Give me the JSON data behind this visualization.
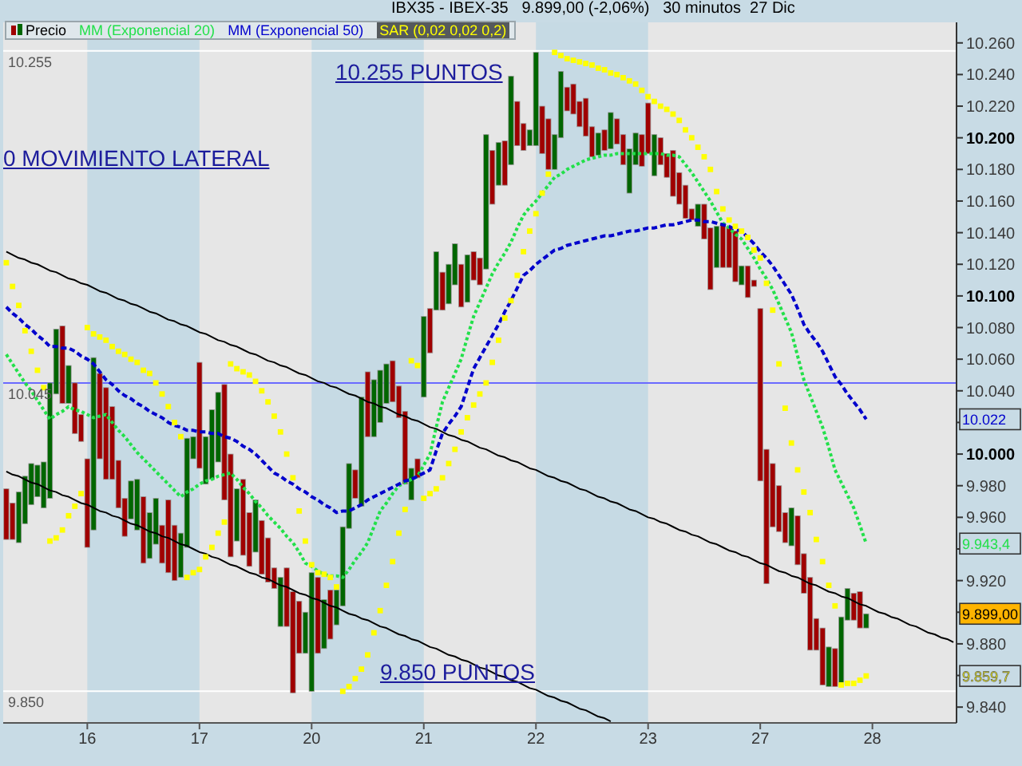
{
  "chart_data": {
    "type": "candlestick",
    "title": "IBX35 - IBEX-35   9.899,00 (-2,06%)   30 minutos  27 Dic",
    "categories": [
      null,
      null,
      null,
      null,
      null,
      null,
      null,
      null,
      null,
      null,
      null,
      null,
      null,
      "16",
      null,
      null,
      null,
      null,
      null,
      null,
      null,
      null,
      null,
      null,
      null,
      null,
      null,
      null,
      null,
      null,
      null,
      "17",
      null,
      null,
      null,
      null,
      null,
      null,
      null,
      null,
      null,
      null,
      null,
      null,
      null,
      null,
      null,
      null,
      null,
      "20",
      null,
      null,
      null,
      null,
      null,
      null,
      null,
      null,
      null,
      null,
      null,
      null,
      null,
      null,
      null,
      null,
      null,
      "21",
      null,
      null,
      null,
      null,
      null,
      null,
      null,
      null,
      null,
      null,
      null,
      null,
      null,
      null,
      null,
      null,
      null,
      "22",
      null,
      null,
      null,
      null,
      null,
      null,
      null,
      null,
      null,
      null,
      null,
      null,
      null,
      null,
      null,
      null,
      null,
      "23",
      null,
      null,
      null,
      null,
      null,
      null,
      null,
      null,
      null,
      null,
      null,
      null,
      null,
      null,
      null,
      null,
      null,
      "27",
      null,
      null,
      null,
      null,
      null,
      null,
      null,
      null,
      null,
      null,
      null,
      null,
      null,
      null,
      null,
      null,
      null,
      "28",
      null,
      null,
      null,
      null,
      null,
      null,
      null,
      null,
      null,
      null,
      null,
      null,
      null
    ],
    "ylim": [
      9830,
      10273
    ],
    "yticks": [
      {
        "value": 9840,
        "label": "9.840"
      },
      {
        "value": 9860,
        "label": null
      },
      {
        "value": 9880,
        "label": "9.880"
      },
      {
        "value": 9900,
        "label": null
      },
      {
        "value": 9920,
        "label": "9.920"
      },
      {
        "value": 9940,
        "label": null
      },
      {
        "value": 9960,
        "label": "9.960"
      },
      {
        "value": 9980,
        "label": "9.980"
      },
      {
        "value": 10000,
        "label": "10.000"
      },
      {
        "value": 10020,
        "label": null
      },
      {
        "value": 10040,
        "label": "10.040"
      },
      {
        "value": 10060,
        "label": "10.060"
      },
      {
        "value": 10080,
        "label": "10.080"
      },
      {
        "value": 10100,
        "label": "10.100"
      },
      {
        "value": 10120,
        "label": "10.120"
      },
      {
        "value": 10140,
        "label": "10.140"
      },
      {
        "value": 10160,
        "label": "10.160"
      },
      {
        "value": 10180,
        "label": "10.180"
      },
      {
        "value": 10200,
        "label": "10.200"
      },
      {
        "value": 10220,
        "label": "10.220"
      },
      {
        "value": 10240,
        "label": "10.240"
      },
      {
        "value": 10260,
        "label": "10.260"
      }
    ],
    "legend": "top left",
    "series": [
      {
        "name": "Precio",
        "ohlc": [
          [
            9978,
            9978,
            9946,
            9946
          ],
          [
            9969,
            9969,
            9946,
            9946
          ],
          [
            9944,
            9976,
            9944,
            9976
          ],
          [
            9956,
            9986,
            9956,
            9986
          ],
          [
            9968,
            9994,
            9968,
            9994
          ],
          [
            9973,
            9993,
            9973,
            9993
          ],
          [
            9966,
            9995,
            9966,
            9995
          ],
          [
            9972,
            10045,
            9972,
            10045
          ],
          [
            10038,
            10079,
            10038,
            10079
          ],
          [
            10081,
            10081,
            10032,
            10032
          ],
          [
            10032,
            10056,
            10032,
            10056
          ],
          [
            10045,
            10045,
            10013,
            10013
          ],
          [
            10025,
            10025,
            10008,
            10008
          ],
          [
            9997,
            9997,
            9941,
            9941
          ],
          [
            9952,
            10061,
            9952,
            10061
          ],
          [
            10051,
            10051,
            9997,
            9997
          ],
          [
            10042,
            10042,
            9984,
            9984
          ],
          [
            10030,
            10030,
            9984,
            9984
          ],
          [
            9996,
            9996,
            9966,
            9966
          ],
          [
            9972,
            9972,
            9948,
            9948
          ],
          [
            9959,
            9983,
            9959,
            9983
          ],
          [
            9952,
            9984,
            9952,
            9984
          ],
          [
            9973,
            9973,
            9931,
            9931
          ],
          [
            9934,
            9963,
            9934,
            9963
          ],
          [
            9943,
            9972,
            9943,
            9972
          ],
          [
            9955,
            9955,
            9931,
            9931
          ],
          [
            9971,
            9971,
            9925,
            9925
          ],
          [
            9955,
            9955,
            9920,
            9920
          ],
          [
            9922,
            9950,
            9922,
            9950
          ],
          [
            9941,
            10010,
            9941,
            10010
          ],
          [
            9997,
            10011,
            9997,
            10011
          ],
          [
            10058,
            10058,
            9991,
            9991
          ],
          [
            9981,
            10011,
            9981,
            10011
          ],
          [
            9984,
            10028,
            9984,
            10028
          ],
          [
            9995,
            10039,
            9995,
            10039
          ],
          [
            10044,
            10044,
            9971,
            9971
          ],
          [
            10000,
            10000,
            9935,
            9935
          ],
          [
            9945,
            9978,
            9945,
            9978
          ],
          [
            9984,
            9984,
            9936,
            9936
          ],
          [
            9963,
            9963,
            9929,
            9929
          ],
          [
            9938,
            9971,
            9938,
            9971
          ],
          [
            9958,
            9958,
            9924,
            9924
          ],
          [
            9947,
            9947,
            9919,
            9919
          ],
          [
            9928,
            9928,
            9915,
            9915
          ],
          [
            9891,
            9922,
            9891,
            9922
          ],
          [
            9928,
            9928,
            9891,
            9891
          ],
          [
            9913,
            9913,
            9849,
            9849
          ],
          [
            9907,
            9907,
            9874,
            9874
          ],
          [
            9874,
            9900,
            9874,
            9900
          ],
          [
            9850,
            9925,
            9850,
            9925
          ],
          [
            9922,
            9922,
            9874,
            9874
          ],
          [
            9877,
            9908,
            9877,
            9908
          ],
          [
            9914,
            9914,
            9883,
            9883
          ],
          [
            9892,
            9914,
            9892,
            9914
          ],
          [
            9904,
            9954,
            9904,
            9954
          ],
          [
            9953,
            9994,
            9953,
            9994
          ],
          [
            9990,
            9990,
            9972,
            9972
          ],
          [
            9967,
            10036,
            9967,
            10036
          ],
          [
            10052,
            10052,
            10011,
            10011
          ],
          [
            10011,
            10047,
            10011,
            10047
          ],
          [
            10020,
            10053,
            10020,
            10053
          ],
          [
            10032,
            10057,
            10032,
            10057
          ],
          [
            10059,
            10059,
            10033,
            10033
          ],
          [
            10043,
            10043,
            10023,
            10023
          ],
          [
            10027,
            10027,
            9981,
            9981
          ],
          [
            9971,
            9991,
            9971,
            9991
          ],
          [
            9997,
            9997,
            9985,
            9985
          ],
          [
            10036,
            10087,
            10036,
            10087
          ],
          [
            10092,
            10092,
            10064,
            10064
          ],
          [
            10091,
            10128,
            10091,
            10128
          ],
          [
            10115,
            10115,
            10091,
            10091
          ],
          [
            10095,
            10120,
            10095,
            10120
          ],
          [
            10107,
            10133,
            10107,
            10133
          ],
          [
            10120,
            10120,
            10093,
            10093
          ],
          [
            10096,
            10126,
            10096,
            10126
          ],
          [
            10128,
            10128,
            10110,
            10110
          ],
          [
            10124,
            10124,
            10107,
            10107
          ],
          [
            10117,
            10202,
            10117,
            10202
          ],
          [
            10192,
            10192,
            10158,
            10158
          ],
          [
            10170,
            10197,
            10170,
            10197
          ],
          [
            10198,
            10198,
            10170,
            10170
          ],
          [
            10183,
            10239,
            10183,
            10239
          ],
          [
            10223,
            10223,
            10195,
            10195
          ],
          [
            10209,
            10209,
            10192,
            10192
          ],
          [
            10195,
            10205,
            10195,
            10205
          ],
          [
            10195,
            10254,
            10195,
            10254
          ],
          [
            10220,
            10220,
            10190,
            10190
          ],
          [
            10212,
            10212,
            10180,
            10180
          ],
          [
            10180,
            10202,
            10180,
            10202
          ],
          [
            10200,
            10242,
            10200,
            10242
          ],
          [
            10232,
            10232,
            10217,
            10217
          ],
          [
            10234,
            10234,
            10215,
            10215
          ],
          [
            10223,
            10223,
            10207,
            10207
          ],
          [
            10225,
            10225,
            10201,
            10201
          ],
          [
            10207,
            10207,
            10188,
            10188
          ],
          [
            10189,
            10203,
            10189,
            10203
          ],
          [
            10205,
            10205,
            10192,
            10192
          ],
          [
            10193,
            10216,
            10193,
            10216
          ],
          [
            10212,
            10212,
            10196,
            10196
          ],
          [
            10202,
            10202,
            10183,
            10183
          ],
          [
            10165,
            10193,
            10165,
            10193
          ],
          [
            10183,
            10203,
            10183,
            10203
          ],
          [
            10202,
            10202,
            10182,
            10182
          ],
          [
            10222,
            10222,
            10190,
            10190
          ],
          [
            10176,
            10202,
            10176,
            10202
          ],
          [
            10200,
            10200,
            10183,
            10183
          ],
          [
            10190,
            10190,
            10175,
            10175
          ],
          [
            10192,
            10192,
            10163,
            10163
          ],
          [
            10178,
            10178,
            10158,
            10158
          ],
          [
            10170,
            10170,
            10149,
            10149
          ],
          [
            10155,
            10155,
            10148,
            10148
          ],
          [
            10144,
            10158,
            10144,
            10158
          ],
          [
            10158,
            10158,
            10136,
            10136
          ],
          [
            10143,
            10143,
            10104,
            10104
          ],
          [
            10118,
            10144,
            10118,
            10144
          ],
          [
            10146,
            10146,
            10118,
            10118
          ],
          [
            10144,
            10144,
            10118,
            10118
          ],
          [
            10141,
            10141,
            10109,
            10109
          ],
          [
            10107,
            10119,
            10107,
            10119
          ],
          [
            10119,
            10119,
            10099,
            10099
          ],
          [
            10110,
            10110,
            10106,
            10106
          ],
          [
            10092,
            10092,
            9983,
            9983
          ],
          [
            10003,
            10003,
            9918,
            9918
          ],
          [
            9994,
            9994,
            9954,
            9954
          ],
          [
            9980,
            9980,
            9951,
            9951
          ],
          [
            9963,
            9963,
            9944,
            9944
          ],
          [
            9942,
            9966,
            9942,
            9966
          ],
          [
            9961,
            9961,
            9930,
            9930
          ],
          [
            9937,
            9937,
            9912,
            9912
          ],
          [
            9922,
            9922,
            9876,
            9876
          ],
          [
            9896,
            9896,
            9876,
            9876
          ],
          [
            9890,
            9890,
            9854,
            9854
          ],
          [
            9853,
            9878,
            9853,
            9878
          ],
          [
            9877,
            9877,
            9853,
            9853
          ],
          [
            9854,
            9897,
            9854,
            9897
          ],
          [
            9895,
            9915,
            9895,
            9915
          ],
          [
            9912,
            9912,
            9895,
            9895
          ],
          [
            9913,
            9913,
            9890,
            9890
          ],
          [
            9890,
            9899,
            9890,
            9899
          ],
          null,
          null,
          null,
          null,
          null,
          null,
          null,
          null,
          null,
          null,
          null,
          null,
          null,
          null
        ],
        "colors": [
          "#a00000",
          "#a00000",
          "#006600",
          "#006600",
          "#006600",
          "#006600",
          "#006600",
          "#006600",
          "#006600",
          "#a00000",
          "#006600",
          "#a00000",
          "#a00000",
          "#a00000",
          "#006600",
          "#a00000",
          "#a00000",
          "#a00000",
          "#a00000",
          "#a00000",
          "#006600",
          "#006600",
          "#a00000",
          "#006600",
          "#006600",
          "#a00000",
          "#a00000",
          "#a00000",
          "#006600",
          "#006600",
          "#006600",
          "#a00000",
          "#006600",
          "#006600",
          "#006600",
          "#a00000",
          "#a00000",
          "#006600",
          "#a00000",
          "#a00000",
          "#006600",
          "#a00000",
          "#a00000",
          "#a00000",
          "#006600",
          "#a00000",
          "#a00000",
          "#a00000",
          "#006600",
          "#006600",
          "#a00000",
          "#006600",
          "#a00000",
          "#006600",
          "#006600",
          "#006600",
          "#a00000",
          "#006600",
          "#a00000",
          "#006600",
          "#006600",
          "#006600",
          "#a00000",
          "#a00000",
          "#a00000",
          "#006600",
          "#a00000",
          "#006600",
          "#a00000",
          "#006600",
          "#a00000",
          "#006600",
          "#006600",
          "#a00000",
          "#006600",
          "#a00000",
          "#a00000",
          "#006600",
          "#a00000",
          "#006600",
          "#a00000",
          "#006600",
          "#a00000",
          "#a00000",
          "#006600",
          "#006600",
          "#a00000",
          "#a00000",
          "#006600",
          "#006600",
          "#a00000",
          "#a00000",
          "#a00000",
          "#a00000",
          "#a00000",
          "#006600",
          "#a00000",
          "#006600",
          "#a00000",
          "#a00000",
          "#006600",
          "#006600",
          "#a00000",
          "#a00000",
          "#006600",
          "#a00000",
          "#a00000",
          "#a00000",
          "#a00000",
          "#a00000",
          "#a00000",
          "#006600",
          "#a00000",
          "#a00000",
          "#006600",
          "#a00000",
          "#a00000",
          "#a00000",
          "#006600",
          "#a00000",
          "#a00000",
          "#a00000",
          "#a00000",
          "#a00000",
          "#a00000",
          "#a00000",
          "#006600",
          "#a00000",
          "#a00000",
          "#a00000",
          "#a00000",
          "#a00000",
          "#006600",
          "#a00000",
          "#006600",
          "#006600",
          "#a00000",
          "#a00000",
          "#006600",
          null,
          null,
          null,
          null,
          null,
          null,
          null,
          null,
          null,
          null,
          null,
          null,
          null,
          null
        ]
      },
      {
        "type": "line",
        "name": "MM (Exponencial 20)",
        "color": "#22e04a",
        "line_style": "dotted",
        "values": [
          10063,
          10057,
          10051,
          10045,
          10040,
          10034,
          10028,
          10022,
          10025,
          10027,
          10030,
          10028,
          10027,
          10025,
          10023,
          10024,
          10025,
          10020,
          10015,
          10011,
          10006,
          10001,
          9997,
          9993,
          9989,
          9985,
          9981,
          9977,
          9973,
          9976,
          9978,
          9981,
          9983,
          9984,
          9986,
          9987,
          9988,
          9984,
          9979,
          9975,
          9970,
          9966,
          9961,
          9957,
          9953,
          9948,
          9944,
          9938,
          9931,
          9929,
          9926,
          9924,
          9923,
          9923,
          9922,
          9927,
          9933,
          9938,
          9944,
          9954,
          9964,
          9969,
          9975,
          9980,
          9982,
          9984,
          9986,
          9993,
          10000,
          10017,
          10033,
          10042,
          10051,
          10060,
          10074,
          10087,
          10096,
          10105,
          10114,
          10121,
          10127,
          10134,
          10143,
          10151,
          10156,
          10160,
          10165,
          10170,
          10175,
          10177,
          10180,
          10182,
          10184,
          10186,
          10187,
          10188,
          10189,
          10189,
          10190,
          10190,
          10190,
          10190,
          10190,
          10190,
          10190,
          10190,
          10189,
          10189,
          10188,
          10183,
          10178,
          10172,
          10166,
          10160,
          10153,
          10146,
          10143,
          10139,
          10136,
          10130,
          10124,
          10117,
          10111,
          10104,
          10095,
          10086,
          10077,
          10062,
          10047,
          10037,
          10027,
          10017,
          10004,
          9990,
          9982,
          9974,
          9966,
          9955,
          9943.4,
          null,
          null,
          null,
          null,
          null,
          null,
          null,
          null,
          null,
          null,
          null,
          null,
          null,
          null
        ]
      },
      {
        "type": "line",
        "name": "MM (Exponencial 50)",
        "color": "#0000cc",
        "line_style": "dashed",
        "values": [
          10093,
          10089,
          10086,
          10082,
          10079,
          10075,
          10072,
          10068,
          10068,
          10067,
          10067,
          10065,
          10062,
          10060,
          10057,
          10052,
          10047,
          10044,
          10040,
          10037,
          10035,
          10032,
          10030,
          10027,
          10025,
          10023,
          10020,
          10018,
          10017,
          10015,
          10015,
          10014,
          10014,
          10013,
          10013,
          10011,
          10010,
          10008,
          10005,
          10003,
          10000,
          9996,
          9992,
          9988,
          9986,
          9983,
          9981,
          9978,
          9976,
          9973,
          9971,
          9968,
          9966,
          9963,
          9964,
          9964,
          9966,
          9968,
          9971,
          9973,
          9975,
          9977,
          9979,
          9981,
          9983,
          9984,
          9986,
          9988,
          9990,
          10002,
          10013,
          10019,
          10024,
          10030,
          10042,
          10054,
          10061,
          10068,
          10075,
          10082,
          10090,
          10097,
          10105,
          10113,
          10116,
          10120,
          10123,
          10126,
          10129,
          10130,
          10132,
          10133,
          10134,
          10135,
          10136,
          10137,
          10138,
          10138,
          10139,
          10140,
          10141,
          10141,
          10142,
          10143,
          10143,
          10144,
          10145,
          10145,
          10146,
          10147,
          10148,
          10148,
          10147,
          10147,
          10146,
          10145,
          10144,
          10142,
          10141,
          10137,
          10133,
          10128,
          10124,
          10119,
          10113,
          10107,
          10101,
          10092,
          10082,
          10076,
          10071,
          10065,
          10057,
          10049,
          10044,
          10038,
          10033,
          10028,
          10022,
          null,
          null,
          null,
          null,
          null,
          null,
          null,
          null,
          null,
          null,
          null,
          null,
          null,
          null
        ]
      },
      {
        "type": "scatter",
        "name": "SAR (0,02 0,02 0,2)",
        "color": "#ffff00",
        "marker": "square",
        "values": [
          10121,
          10106,
          10094,
          10078,
          10065,
          10053,
          10042,
          9945,
          9947,
          9952,
          9961,
          9967,
          9975,
          10080,
          10076,
          10074,
          10072,
          10068,
          10065,
          10063,
          10060,
          10058,
          10053,
          10051,
          10045,
          10038,
          10030,
          10020,
          10011,
          9922,
          9925,
          9927,
          9935,
          9941,
          9950,
          9957,
          10057,
          10054,
          10052,
          10050,
          10046,
          10040,
          10033,
          10024,
          10014,
          10000,
          9985,
          9964,
          9945,
          9930,
          9925,
          9924,
          9922,
          9916,
          9850,
          9853,
          9858,
          9864,
          9873,
          9887,
          9901,
          9917,
          9932,
          9950,
          9965,
          10059,
          10056,
          9972,
          9975,
          9978,
          9985,
          9994,
          10003,
          10014,
          10023,
          10031,
          10038,
          10045,
          10058,
          10072,
          10086,
          10097,
          10113,
          10128,
          10141,
          10152,
          10165,
          10177,
          10254,
          10252,
          10250,
          10249,
          10248,
          10247,
          10246,
          10244,
          10243,
          10241,
          10240,
          10238,
          10236,
          10234,
          10230,
          10226,
          10223,
          10220,
          10218,
          10215,
          10211,
          10205,
          10200,
          10194,
          10188,
          10180,
          10166,
          10155,
          10148,
          10144,
          10141,
          10137,
          10129,
          10124,
          10108,
          10091,
          10057,
          10029,
          10007,
          9990,
          9976,
          9963,
          9946,
          9932,
          9917,
          9904,
          9854,
          9855,
          9855,
          9857,
          9859.7,
          null,
          null,
          null,
          null,
          null,
          null,
          null,
          null,
          null,
          null,
          null,
          null,
          null,
          null
        ]
      },
      {
        "type": "line",
        "color": "#000000",
        "line_style": "solid",
        "values": [
          10128,
          10126,
          10124,
          10123,
          10121,
          10120,
          10118,
          10116,
          10115,
          10113,
          10111,
          10110,
          10108,
          10107,
          10105,
          10103,
          10102,
          10100,
          10098,
          10097,
          10095,
          10094,
          10092,
          10090,
          10089,
          10087,
          10085,
          10084,
          10082,
          10081,
          10079,
          10077,
          10076,
          10074,
          10072,
          10071,
          10069,
          10068,
          10066,
          10064,
          10063,
          10061,
          10059,
          10058,
          10056,
          10055,
          10053,
          10051,
          10050,
          10048,
          10046,
          10045,
          10043,
          10042,
          10040,
          10038,
          10037,
          10035,
          10033,
          10032,
          10030,
          10029,
          10027,
          10025,
          10024,
          10022,
          10021,
          10019,
          10017,
          10016,
          10014,
          10012,
          10011,
          10009,
          10008,
          10006,
          10004,
          10003,
          10001,
          9999,
          9998,
          9996,
          9995,
          9993,
          9991,
          9990,
          9988,
          9986,
          9985,
          9983,
          9982,
          9980,
          9978,
          9977,
          9975,
          9973,
          9972,
          9970,
          9969,
          9967,
          9965,
          9964,
          9962,
          9960,
          9959,
          9957,
          9956,
          9954,
          9952,
          9951,
          9949,
          9948,
          9946,
          9944,
          9943,
          9941,
          9939,
          9938,
          9936,
          9935,
          9933,
          9931,
          9930,
          9928,
          9926,
          9925,
          9923,
          9922,
          9920,
          9918,
          9917,
          9915,
          9913,
          9912,
          9910,
          9909,
          9907,
          9905,
          9904,
          9902,
          9900,
          9899,
          9897,
          9896,
          9894,
          9892,
          9891,
          9889,
          9887,
          9886,
          9884,
          9883,
          9881
        ]
      },
      {
        "type": "line",
        "color": "#000000",
        "line_style": "solid",
        "values": [
          9989,
          9987,
          9986,
          9984,
          9982,
          9981,
          9979,
          9977,
          9976,
          9974,
          9973,
          9971,
          9969,
          9968,
          9966,
          9964,
          9963,
          9961,
          9960,
          9958,
          9956,
          9955,
          9953,
          9951,
          9950,
          9948,
          9947,
          9945,
          9943,
          9942,
          9940,
          9938,
          9937,
          9935,
          9934,
          9932,
          9930,
          9929,
          9927,
          9925,
          9924,
          9922,
          9921,
          9919,
          9917,
          9916,
          9914,
          9912,
          9911,
          9909,
          9908,
          9906,
          9904,
          9903,
          9901,
          9899,
          9898,
          9896,
          9895,
          9893,
          9891,
          9890,
          9888,
          9886,
          9885,
          9883,
          9882,
          9880,
          9878,
          9877,
          9875,
          9873,
          9872,
          9870,
          9869,
          9867,
          9865,
          9864,
          9862,
          9860,
          9859,
          9857,
          9856,
          9854,
          9852,
          9851,
          9849,
          9847,
          9846,
          9844,
          9843,
          9841,
          9839,
          9838,
          9836,
          9834,
          9833,
          9831,
          null,
          null,
          null,
          null,
          null,
          null,
          null,
          null,
          null,
          null,
          null,
          null,
          null,
          null,
          null,
          null,
          null,
          null,
          null,
          null,
          null,
          null,
          null,
          null,
          null,
          null,
          null,
          null,
          null,
          null,
          null,
          null,
          null,
          null,
          null,
          null,
          null,
          null,
          null,
          null,
          null,
          null,
          null,
          null,
          null,
          null,
          null,
          null,
          null,
          null,
          null,
          null,
          null,
          null,
          null
        ]
      }
    ],
    "ref_lines": [
      {
        "axis": "y",
        "value": 10255,
        "label": "10.255",
        "color": "#ffffff"
      },
      {
        "axis": "y",
        "value": 10045,
        "label": "10.045",
        "color": "#6a6aff"
      },
      {
        "axis": "y",
        "value": 9850,
        "label": "9.850",
        "color": "#ffffff"
      }
    ],
    "bands": [
      {
        "axis": "x",
        "from": "16",
        "to": "17",
        "color": "#c6dae4"
      },
      {
        "axis": "x",
        "from": "20",
        "to": "21",
        "color": "#c6dae4"
      },
      {
        "axis": "x",
        "from": "22",
        "to": "23",
        "color": "#c6dae4"
      }
    ],
    "annotations": [
      "10.255 PUNTOS",
      "0 MOVIMIENTO LATERAL",
      "9.850 PUNTOS",
      "10.022",
      "9.943,4",
      "9.899,00",
      "9.859,7"
    ]
  }
}
